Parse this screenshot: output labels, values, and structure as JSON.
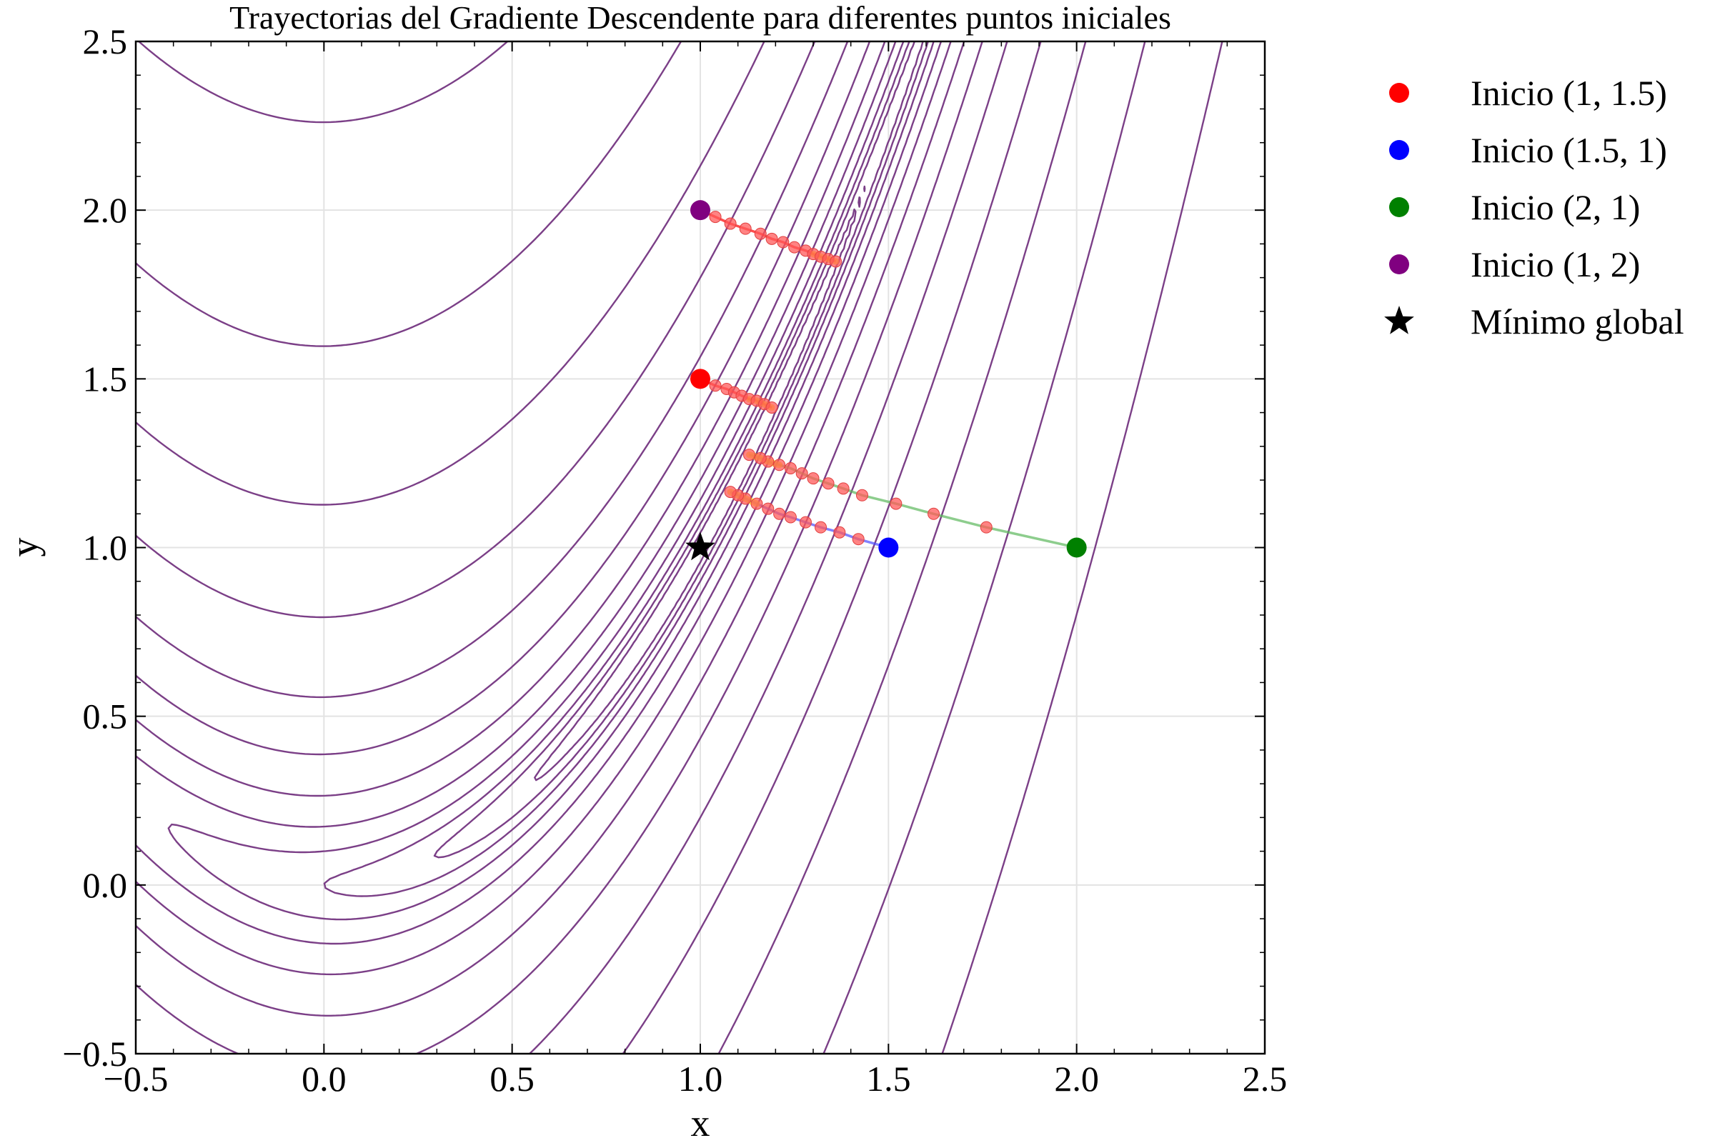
{
  "chart_data": {
    "type": "line",
    "title": "Trayectorias del Gradiente Descendente para diferentes puntos iniciales",
    "xlabel": "x",
    "ylabel": "y",
    "xlim": [
      -0.5,
      2.5
    ],
    "ylim": [
      -0.5,
      2.5
    ],
    "x_ticks": [
      "−0.5",
      "0.0",
      "0.5",
      "1.0",
      "1.5",
      "2.0",
      "2.5"
    ],
    "y_ticks": [
      "−0.5",
      "0.0",
      "0.5",
      "1.0",
      "1.5",
      "2.0",
      "2.5"
    ],
    "grid": true,
    "legend_position": "outside-right-top",
    "contour": {
      "function": "rosenbrock",
      "levels": [
        0.2,
        0.5,
        1,
        2,
        4,
        8,
        16,
        32,
        64,
        128,
        256,
        512,
        1024
      ],
      "color": "#7b3f87"
    },
    "series": [
      {
        "name": "Inicio (1, 1.5)",
        "color": "#ff0000",
        "line_color": "#ff0000",
        "start": [
          1.0,
          1.5
        ],
        "path": [
          [
            1.0,
            1.5
          ],
          [
            1.04,
            1.48
          ],
          [
            1.07,
            1.47
          ],
          [
            1.09,
            1.46
          ],
          [
            1.11,
            1.45
          ],
          [
            1.13,
            1.44
          ],
          [
            1.15,
            1.435
          ],
          [
            1.17,
            1.425
          ],
          [
            1.19,
            1.415
          ]
        ]
      },
      {
        "name": "Inicio (1.5, 1)",
        "color": "#0000ff",
        "line_color": "#4d4dff",
        "start": [
          1.5,
          1.0
        ],
        "path": [
          [
            1.5,
            1.0
          ],
          [
            1.42,
            1.025
          ],
          [
            1.37,
            1.045
          ],
          [
            1.32,
            1.06
          ],
          [
            1.28,
            1.075
          ],
          [
            1.24,
            1.09
          ],
          [
            1.21,
            1.1
          ],
          [
            1.18,
            1.115
          ],
          [
            1.15,
            1.13
          ],
          [
            1.12,
            1.145
          ],
          [
            1.1,
            1.155
          ],
          [
            1.08,
            1.165
          ]
        ]
      },
      {
        "name": "Inicio (2, 1)",
        "color": "#008000",
        "line_color": "#5db85d",
        "start": [
          2.0,
          1.0
        ],
        "path": [
          [
            2.0,
            1.0
          ],
          [
            1.76,
            1.06
          ],
          [
            1.62,
            1.1
          ],
          [
            1.52,
            1.13
          ],
          [
            1.43,
            1.155
          ],
          [
            1.38,
            1.175
          ],
          [
            1.34,
            1.19
          ],
          [
            1.3,
            1.205
          ],
          [
            1.27,
            1.22
          ],
          [
            1.24,
            1.235
          ],
          [
            1.21,
            1.245
          ],
          [
            1.18,
            1.255
          ],
          [
            1.16,
            1.265
          ],
          [
            1.13,
            1.275
          ]
        ]
      },
      {
        "name": "Inicio (1, 2)",
        "color": "#800080",
        "line_color": "#ff0000",
        "start": [
          1.0,
          2.0
        ],
        "path": [
          [
            1.0,
            2.0
          ],
          [
            1.04,
            1.98
          ],
          [
            1.08,
            1.96
          ],
          [
            1.12,
            1.945
          ],
          [
            1.16,
            1.93
          ],
          [
            1.19,
            1.915
          ],
          [
            1.22,
            1.905
          ],
          [
            1.25,
            1.89
          ],
          [
            1.28,
            1.88
          ],
          [
            1.3,
            1.87
          ],
          [
            1.32,
            1.862
          ],
          [
            1.34,
            1.855
          ],
          [
            1.36,
            1.848
          ]
        ]
      }
    ],
    "global_minimum": {
      "name": "Mínimo global",
      "x": 1.0,
      "y": 1.0,
      "color": "#000000"
    }
  }
}
